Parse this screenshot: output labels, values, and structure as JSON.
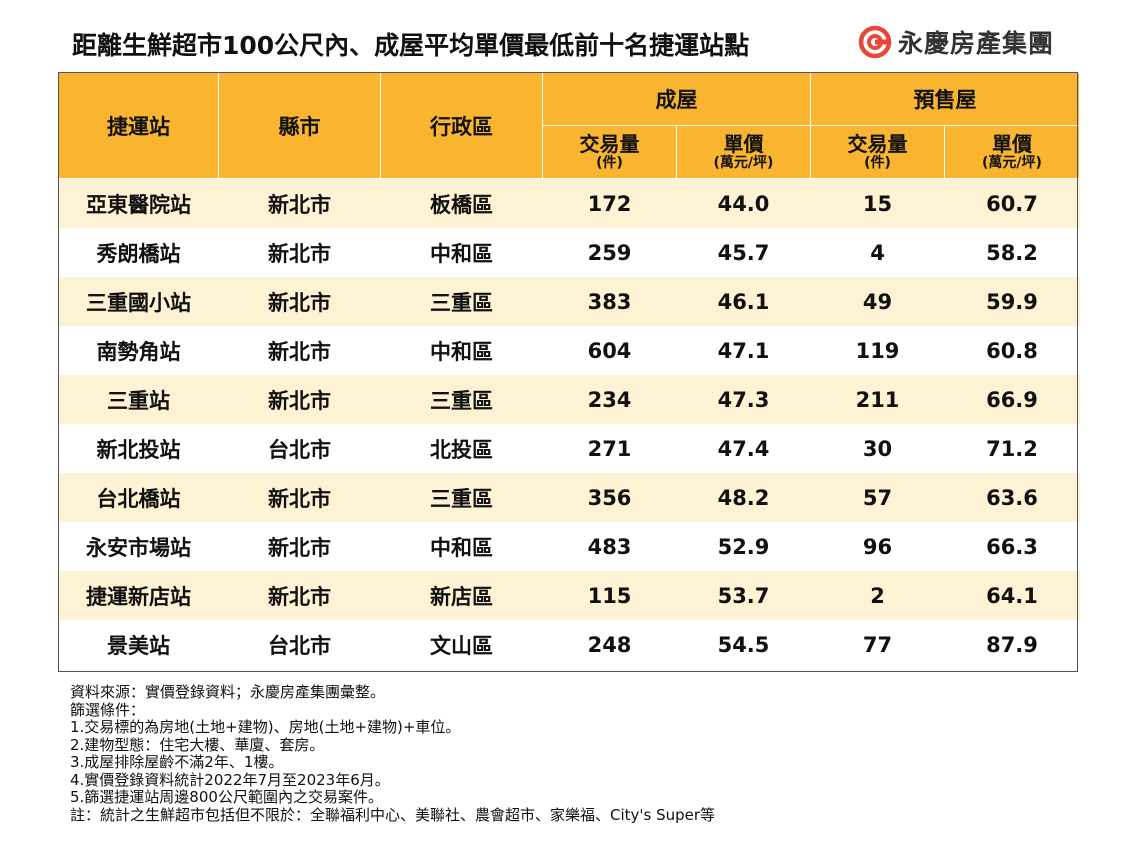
{
  "title": "距離生鮮超市100公尺內、成屋平均單價最低前十名捷運站點",
  "logo": {
    "text": "永慶房產集團",
    "icon": "yungching-logo-icon",
    "color": "#e8473a"
  },
  "colors": {
    "header": "#f9b52f",
    "row_alt": "#fdf3d4"
  },
  "chart_data": {
    "type": "table",
    "title": "距離生鮮超市100公尺內、成屋平均單價最低前十名捷運站點",
    "group_headers": [
      "成屋",
      "預售屋"
    ],
    "columns": [
      {
        "label": "捷運站",
        "sub": ""
      },
      {
        "label": "縣市",
        "sub": ""
      },
      {
        "label": "行政區",
        "sub": ""
      },
      {
        "label": "交易量",
        "sub": "(件)"
      },
      {
        "label": "單價",
        "sub": "(萬元/坪)"
      },
      {
        "label": "交易量",
        "sub": "(件)"
      },
      {
        "label": "單價",
        "sub": "(萬元/坪)"
      }
    ],
    "rows": [
      [
        "亞東醫院站",
        "新北市",
        "板橋區",
        "172",
        "44.0",
        "15",
        "60.7"
      ],
      [
        "秀朗橋站",
        "新北市",
        "中和區",
        "259",
        "45.7",
        "4",
        "58.2"
      ],
      [
        "三重國小站",
        "新北市",
        "三重區",
        "383",
        "46.1",
        "49",
        "59.9"
      ],
      [
        "南勢角站",
        "新北市",
        "中和區",
        "604",
        "47.1",
        "119",
        "60.8"
      ],
      [
        "三重站",
        "新北市",
        "三重區",
        "234",
        "47.3",
        "211",
        "66.9"
      ],
      [
        "新北投站",
        "台北市",
        "北投區",
        "271",
        "47.4",
        "30",
        "71.2"
      ],
      [
        "台北橋站",
        "新北市",
        "三重區",
        "356",
        "48.2",
        "57",
        "63.6"
      ],
      [
        "永安市場站",
        "新北市",
        "中和區",
        "483",
        "52.9",
        "96",
        "66.3"
      ],
      [
        "捷運新店站",
        "新北市",
        "新店區",
        "115",
        "53.7",
        "2",
        "64.1"
      ],
      [
        "景美站",
        "台北市",
        "文山區",
        "248",
        "54.5",
        "77",
        "87.9"
      ]
    ]
  },
  "notes": [
    "資料來源：實價登錄資料；永慶房產集團彙整。",
    "篩選條件：",
    "1.交易標的為房地(土地+建物)、房地(土地+建物)+車位。",
    "2.建物型態：住宅大樓、華廈、套房。",
    "3.成屋排除屋齡不滿2年、1樓。",
    "4.實價登錄資料統計2022年7月至2023年6月。",
    "5.篩選捷運站周邊800公尺範圍內之交易案件。",
    "註：統計之生鮮超市包括但不限於：全聯福利中心、美聯社、農會超市、家樂福、City's Super等"
  ]
}
